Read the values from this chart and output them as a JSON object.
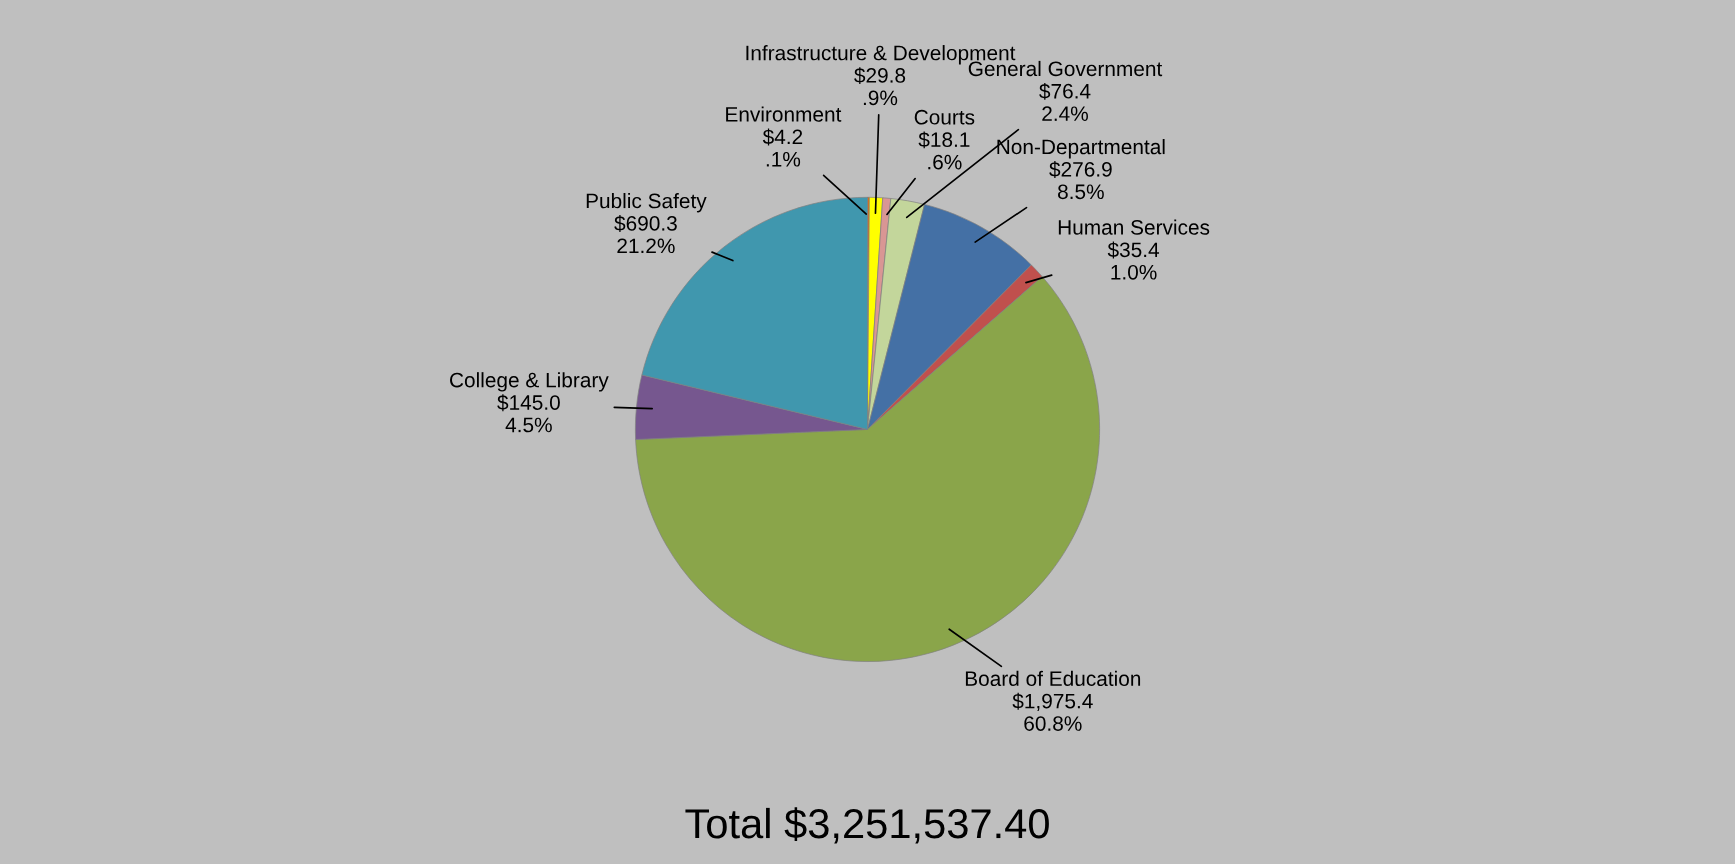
{
  "chart_data": {
    "type": "pie",
    "categories": [
      "Environment",
      "Infrastructure & Development",
      "Courts",
      "General Government",
      "Non-Departmental",
      "Human Services",
      "Board of Education",
      "College & Library",
      "Public Safety"
    ],
    "values": [
      4.2,
      29.8,
      18.1,
      76.4,
      276.9,
      35.4,
      1975.4,
      145.0,
      690.3
    ],
    "value_labels": [
      "$4.2\n.1%",
      "$29.8\n.9%",
      "$18.1\n.6%",
      "$76.4\n2.4%",
      "$276.9\n8.5%",
      "$35.4\n1.0%",
      "$1,975.4\n60.8%",
      "$145.0\n4.5%",
      "$690.3\n21.2%"
    ],
    "colors": [
      "#e46c0a",
      "#ffff00",
      "#d99694",
      "#c3d69b",
      "#4470a5",
      "#c0504d",
      "#8aa54a",
      "#76578f",
      "#4097ae"
    ],
    "legend": false,
    "annotations": [
      "Total $3,251,537.40"
    ]
  }
}
